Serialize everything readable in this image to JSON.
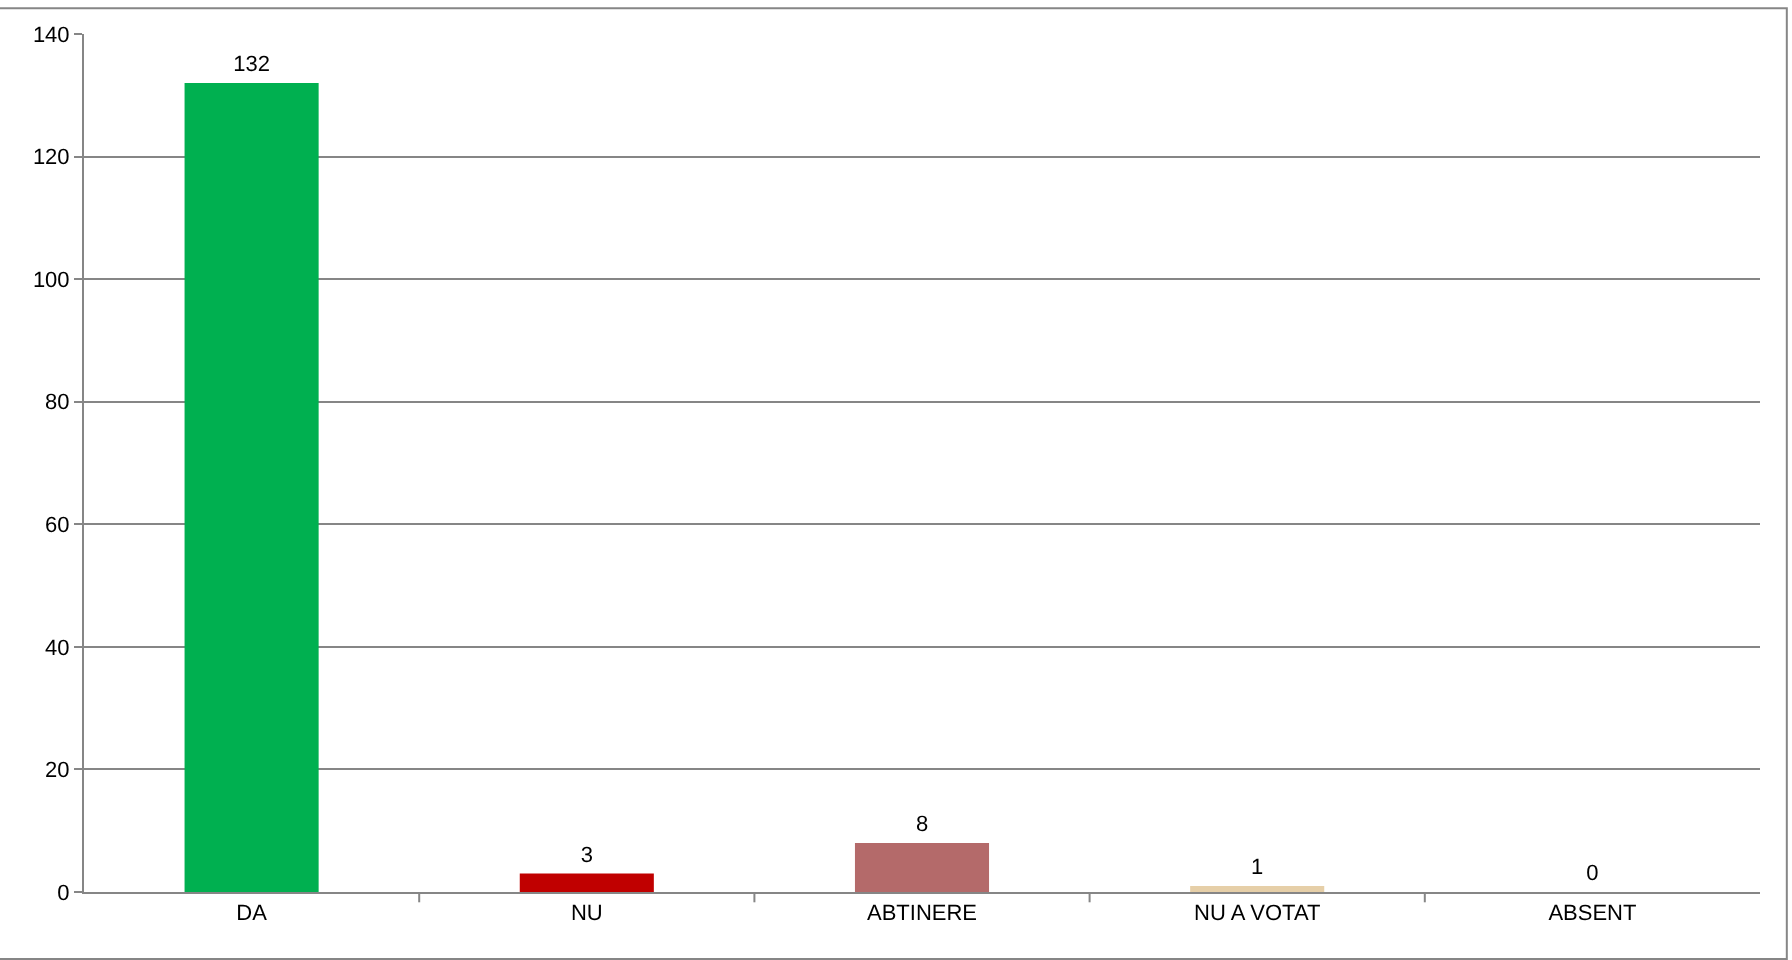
{
  "chart_data": {
    "type": "bar",
    "categories": [
      "DA",
      "NU",
      "ABTINERE",
      "NU A VOTAT",
      "ABSENT"
    ],
    "values": [
      132,
      3,
      8,
      1,
      0
    ],
    "colors": [
      "#00b050",
      "#c00000",
      "#b46a6a",
      "#e6cfa8",
      "#9bbb59"
    ],
    "ylim": [
      0,
      140
    ],
    "yticks": [
      0,
      20,
      40,
      60,
      80,
      100,
      120,
      140
    ],
    "grid": "y",
    "data_labels": true
  }
}
